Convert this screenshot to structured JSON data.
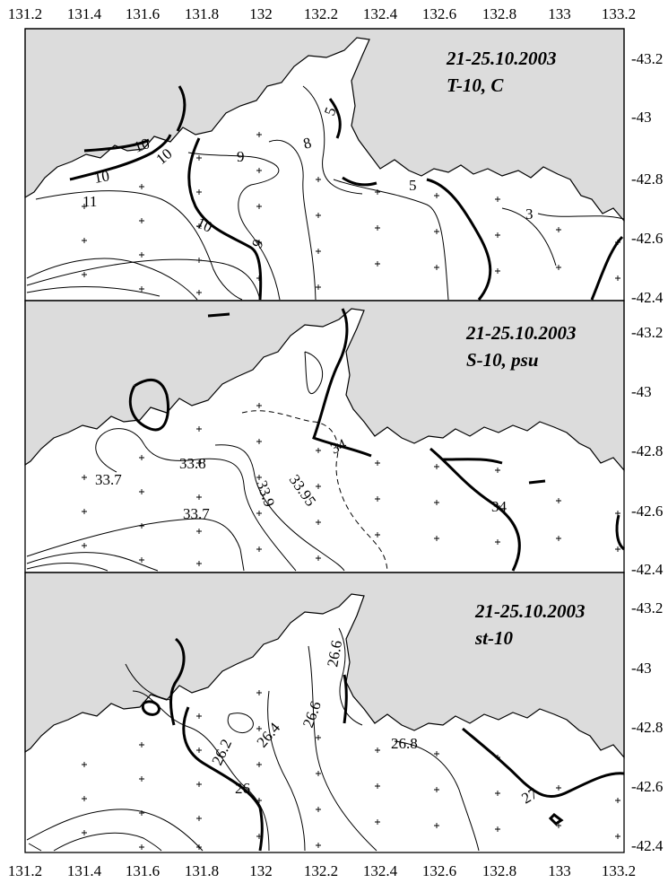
{
  "figure": {
    "lon_ticks": [
      "131.2",
      "131.4",
      "131.6",
      "131.8",
      "132",
      "132.2",
      "132.4",
      "132.6",
      "132.8",
      "133",
      "133.2"
    ],
    "lat_ticks": [
      "-43.2",
      "-43",
      "-42.8",
      "-42.6",
      "-42.4"
    ]
  },
  "panels": [
    {
      "id": "temperature",
      "title_line1": "21-25.10.2003",
      "title_line2": "T-10, C",
      "labels": [
        "10",
        "10",
        "10",
        "11",
        "10",
        "9",
        "9",
        "8",
        "5",
        "5",
        "3"
      ]
    },
    {
      "id": "salinity",
      "title_line1": "21-25.10.2003",
      "title_line2": "S-10, psu",
      "labels": [
        "33.7",
        "33.8",
        "33.9",
        "33.95",
        "34",
        "33.7",
        "34"
      ]
    },
    {
      "id": "density",
      "title_line1": "21-25.10.2003",
      "title_line2": "st-10",
      "labels": [
        "26.6",
        "26.6",
        "26.4",
        "26.2",
        "26.8",
        "26",
        "27"
      ]
    }
  ],
  "colors": {
    "land": "#dcdcdc",
    "water": "#ffffff",
    "line": "#000000"
  }
}
